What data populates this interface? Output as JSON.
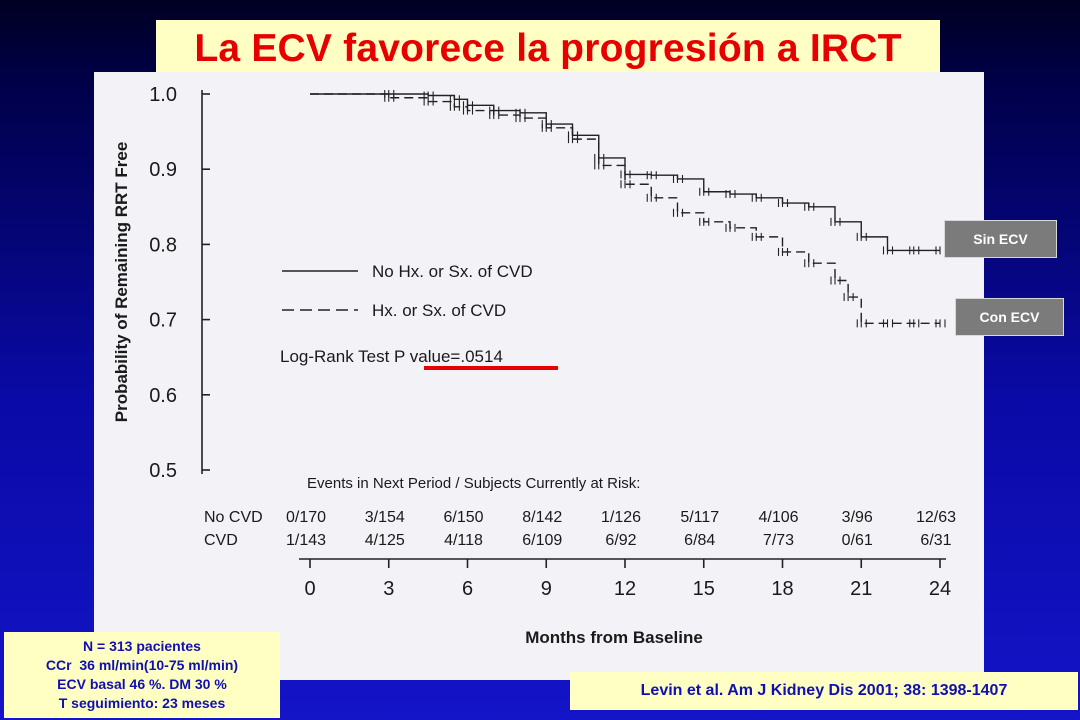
{
  "slide": {
    "title": "La ECV favorece la progresión a IRCT",
    "badge_sin": "Sin ECV",
    "badge_con": "Con ECV",
    "stats_lines": [
      "N = 313 pacientes",
      "CCr  36 ml/min(10-75 ml/min)",
      "ECV basal 46 %. DM 30 %",
      "T seguimiento: 23 meses"
    ],
    "citation": "Levin et al. Am J Kidney Dis 2001; 38: 1398-1407",
    "colors": {
      "title_text": "#e60000",
      "title_background": "#ffffc4",
      "info_text": "#1010b0",
      "badge_background": "#7b7b7b",
      "underline": "#e60000"
    }
  },
  "chart_data": {
    "type": "line",
    "ylabel": "Probability of Remaining RRT Free",
    "xlabel": "Months from Baseline",
    "ylim": [
      0.5,
      1.0
    ],
    "xlim": [
      0,
      24
    ],
    "y_ticks": [
      "1.0",
      "0.9",
      "0.8",
      "0.7",
      "0.6",
      "0.5"
    ],
    "x_ticks": [
      "0",
      "3",
      "6",
      "9",
      "12",
      "15",
      "18",
      "21",
      "24"
    ],
    "legend": [
      {
        "label": "No Hx. or Sx. of CVD",
        "style": "solid"
      },
      {
        "label": "Hx. or Sx. of CVD",
        "style": "dashed"
      }
    ],
    "annotation": "Log-Rank Test P value=.0514",
    "risk_table": {
      "header": "Events in Next Period / Subjects Currently at Risk:",
      "rows": [
        {
          "label": "No CVD",
          "values": [
            "0/170",
            "3/154",
            "6/150",
            "8/142",
            "1/126",
            "5/117",
            "4/106",
            "3/96",
            "12/63"
          ]
        },
        {
          "label": "CVD",
          "values": [
            "1/143",
            "4/125",
            "4/118",
            "6/109",
            "6/92",
            "6/84",
            "7/73",
            "0/61",
            "6/31"
          ]
        }
      ]
    },
    "series": [
      {
        "name": "No Hx. or Sx. of CVD",
        "style": "solid",
        "x": [
          0,
          3,
          4.5,
          5.5,
          6,
          7,
          8,
          9,
          10,
          11,
          12,
          13,
          14,
          15,
          16,
          17,
          18,
          19,
          20,
          21,
          22,
          23,
          24
        ],
        "y": [
          1.0,
          1.0,
          0.998,
          0.993,
          0.985,
          0.978,
          0.975,
          0.96,
          0.945,
          0.915,
          0.893,
          0.892,
          0.887,
          0.87,
          0.867,
          0.862,
          0.855,
          0.85,
          0.83,
          0.81,
          0.792,
          0.792,
          0.792
        ]
      },
      {
        "name": "Hx. or Sx. of CVD",
        "style": "dashed",
        "x": [
          0,
          3,
          4.5,
          5.5,
          6,
          7,
          8,
          9,
          10,
          11,
          12,
          13,
          14,
          15,
          16,
          17,
          18,
          19,
          20,
          20.5,
          21,
          22,
          23,
          24
        ],
        "y": [
          1.0,
          0.995,
          0.99,
          0.983,
          0.978,
          0.972,
          0.968,
          0.955,
          0.94,
          0.905,
          0.88,
          0.862,
          0.842,
          0.83,
          0.822,
          0.81,
          0.79,
          0.775,
          0.752,
          0.73,
          0.695,
          0.695,
          0.695,
          0.695
        ]
      }
    ]
  }
}
